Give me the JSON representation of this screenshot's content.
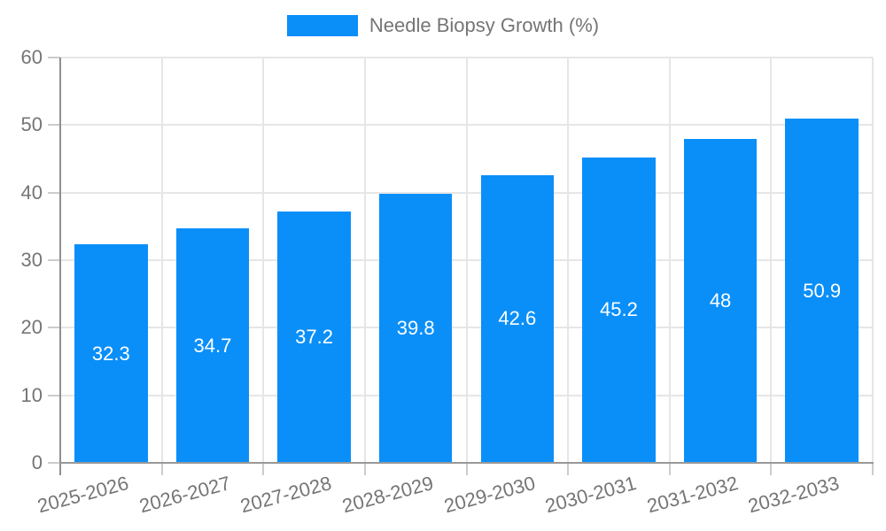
{
  "legend": {
    "label": "Needle Biopsy Growth (%)"
  },
  "chart_data": {
    "type": "bar",
    "title": "Needle Biopsy Growth (%)",
    "categories": [
      "2025-2026",
      "2026-2027",
      "2027-2028",
      "2028-2029",
      "2029-2030",
      "2030-2031",
      "2031-2032",
      "2032-2033"
    ],
    "values": [
      32.3,
      34.7,
      37.2,
      39.8,
      42.6,
      45.2,
      48,
      50.9
    ],
    "series_name": "Needle Biopsy Growth (%)",
    "xlabel": "",
    "ylabel": "",
    "ylim": [
      0,
      60
    ],
    "yticks": [
      0,
      10,
      20,
      30,
      40,
      50,
      60
    ],
    "grid": true,
    "legend_position": "top-center",
    "value_labels_position": "inside-center"
  },
  "colors": {
    "bar": "#0a8ff9",
    "grid": "#e6e6e6",
    "axis": "#999999",
    "tick": "#cccccc",
    "text": "#757575",
    "value_text": "#ffffff",
    "background": "#ffffff"
  }
}
